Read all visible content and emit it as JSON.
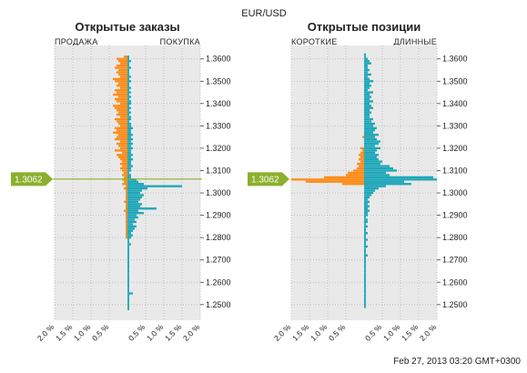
{
  "header": {
    "symbol": "EUR/USD"
  },
  "footer": {
    "timestamp": "Feb 27, 2013 03:20 GMT+0300"
  },
  "current_price": "1.3062",
  "colors": {
    "left_side": "#ff8c1a",
    "right_side": "#1ea7b9",
    "price_line": "#8bb02d",
    "plot_bg": "#e9e9e9"
  },
  "chart_data": [
    {
      "type": "bar",
      "orientation": "horizontal-diverging",
      "title": "Открытые заказы",
      "left_label": "ПРОДАЖА",
      "right_label": "ПОКУПКА",
      "y_ticks": [
        "1.3600",
        "1.3500",
        "1.3400",
        "1.3300",
        "1.3200",
        "1.3100",
        "1.3000",
        "1.2900",
        "1.2800",
        "1.2700",
        "1.2600",
        "1.2500"
      ],
      "x_ticks": [
        "2.0 %",
        "1.5 %",
        "1.0 %",
        "0.5 %",
        "0.5 %",
        "1.0 %",
        "1.5 %",
        "2.0 %"
      ],
      "xlim": [
        -2.0,
        2.0
      ],
      "ylim": [
        1.243,
        1.366
      ],
      "price_step": 0.001,
      "series": [
        {
          "name": "ПРОДАЖА",
          "prices": [
            1.361,
            1.36,
            1.359,
            1.358,
            1.357,
            1.356,
            1.355,
            1.354,
            1.353,
            1.352,
            1.351,
            1.35,
            1.349,
            1.348,
            1.347,
            1.346,
            1.345,
            1.344,
            1.343,
            1.342,
            1.341,
            1.34,
            1.339,
            1.338,
            1.337,
            1.336,
            1.335,
            1.334,
            1.333,
            1.332,
            1.331,
            1.33,
            1.329,
            1.328,
            1.327,
            1.326,
            1.325,
            1.324,
            1.323,
            1.322,
            1.321,
            1.32,
            1.319,
            1.318,
            1.317,
            1.316,
            1.315,
            1.314,
            1.313,
            1.312,
            1.311,
            1.31,
            1.309,
            1.308,
            1.307,
            1.306,
            1.305,
            1.304,
            1.303,
            1.302,
            1.301,
            1.3,
            1.299,
            1.298,
            1.297,
            1.296,
            1.295,
            1.294,
            1.293,
            1.292,
            1.291,
            1.29,
            1.289,
            1.288,
            1.287,
            1.286,
            1.285,
            1.284,
            1.283,
            1.282,
            1.281,
            1.28
          ],
          "values": [
            0.1,
            0.3,
            0.25,
            0.2,
            0.3,
            0.35,
            0.25,
            0.3,
            0.25,
            0.2,
            0.4,
            0.35,
            0.25,
            0.3,
            0.2,
            0.35,
            0.3,
            0.4,
            0.25,
            0.35,
            0.3,
            0.2,
            0.4,
            0.35,
            0.3,
            0.25,
            0.3,
            0.2,
            0.35,
            0.3,
            0.25,
            0.2,
            0.35,
            0.3,
            0.4,
            0.25,
            0.3,
            0.35,
            0.2,
            0.3,
            0.25,
            0.2,
            0.35,
            0.15,
            0.3,
            0.25,
            0.2,
            0.15,
            0.2,
            0.15,
            0.2,
            0.15,
            0.1,
            0.15,
            0.1,
            0.15,
            0.1,
            0.15,
            0.05,
            0.1,
            0.05,
            0.05,
            0.05,
            0.05,
            0.05,
            0.1,
            0.05,
            0.05,
            0.05,
            0.1,
            0.05,
            0.05,
            0.05,
            0.05,
            0.05,
            0.05,
            0.05,
            0.05,
            0.05,
            0.05,
            0.05,
            0.05
          ]
        },
        {
          "name": "ПОКУПКА",
          "prices": [
            1.361,
            1.36,
            1.359,
            1.358,
            1.357,
            1.356,
            1.355,
            1.354,
            1.353,
            1.352,
            1.351,
            1.35,
            1.349,
            1.348,
            1.347,
            1.346,
            1.345,
            1.344,
            1.343,
            1.342,
            1.341,
            1.34,
            1.339,
            1.338,
            1.337,
            1.336,
            1.335,
            1.334,
            1.333,
            1.332,
            1.331,
            1.33,
            1.329,
            1.328,
            1.327,
            1.326,
            1.325,
            1.324,
            1.323,
            1.322,
            1.321,
            1.32,
            1.319,
            1.318,
            1.317,
            1.316,
            1.315,
            1.314,
            1.313,
            1.312,
            1.311,
            1.31,
            1.309,
            1.308,
            1.307,
            1.306,
            1.305,
            1.304,
            1.303,
            1.302,
            1.301,
            1.3,
            1.299,
            1.298,
            1.297,
            1.296,
            1.295,
            1.294,
            1.293,
            1.292,
            1.291,
            1.29,
            1.289,
            1.288,
            1.287,
            1.286,
            1.285,
            1.284,
            1.283,
            1.282,
            1.281,
            1.28,
            1.279,
            1.278,
            1.277,
            1.276,
            1.275,
            1.274,
            1.273,
            1.272,
            1.271,
            1.27,
            1.269,
            1.268,
            1.267,
            1.266,
            1.265,
            1.264,
            1.263,
            1.262,
            1.261,
            1.26,
            1.259,
            1.258,
            1.257,
            1.256,
            1.255,
            1.254,
            1.253,
            1.252,
            1.251,
            1.25,
            1.249,
            1.248
          ],
          "values": [
            0.05,
            0.05,
            0.1,
            0.05,
            0.05,
            0.1,
            0.05,
            0.05,
            0.05,
            0.1,
            0.05,
            0.1,
            0.05,
            0.05,
            0.1,
            0.05,
            0.1,
            0.05,
            0.1,
            0.05,
            0.1,
            0.1,
            0.05,
            0.1,
            0.05,
            0.1,
            0.05,
            0.1,
            0.1,
            0.05,
            0.1,
            0.1,
            0.15,
            0.1,
            0.1,
            0.15,
            0.1,
            0.15,
            0.1,
            0.15,
            0.1,
            0.15,
            0.1,
            0.1,
            0.15,
            0.1,
            0.15,
            0.1,
            0.1,
            0.15,
            0.1,
            0.1,
            0.05,
            0.1,
            0.1,
            0.25,
            0.3,
            0.45,
            1.5,
            0.55,
            0.4,
            0.35,
            0.45,
            0.4,
            0.35,
            0.3,
            0.4,
            0.35,
            0.8,
            0.3,
            0.45,
            0.25,
            0.3,
            0.2,
            0.25,
            0.15,
            0.25,
            0.2,
            0.15,
            0.1,
            0.15,
            0.1,
            0.05,
            0.05,
            0.1,
            0.05,
            0.05,
            0.05,
            0.05,
            0.05,
            0.05,
            0.05,
            0.05,
            0.05,
            0.05,
            0.05,
            0.05,
            0.05,
            0.05,
            0.05,
            0.05,
            0.05,
            0.05,
            0.05,
            0.05,
            0.05,
            0.15,
            0.05,
            0.05,
            0.05,
            0.05,
            0.05,
            0.05,
            0.05
          ]
        }
      ]
    },
    {
      "type": "bar",
      "orientation": "horizontal-diverging",
      "title": "Открытые позиции",
      "left_label": "КОРОТКИЕ",
      "right_label": "ДЛИННЫЕ",
      "y_ticks": [
        "1.3600",
        "1.3500",
        "1.3400",
        "1.3300",
        "1.3200",
        "1.3100",
        "1.3000",
        "1.2900",
        "1.2800",
        "1.2700",
        "1.2600",
        "1.2500"
      ],
      "x_ticks": [
        "2.0 %",
        "1.5 %",
        "1.0 %",
        "0.5 %",
        "0.5 %",
        "1.0 %",
        "1.5 %",
        "2.0 %"
      ],
      "xlim": [
        -2.0,
        2.0
      ],
      "ylim": [
        1.243,
        1.366
      ],
      "price_step": 0.001,
      "series": [
        {
          "name": "КОРОТКИЕ",
          "prices": [
            1.325,
            1.32,
            1.319,
            1.318,
            1.317,
            1.316,
            1.315,
            1.314,
            1.313,
            1.312,
            1.311,
            1.31,
            1.309,
            1.308,
            1.307,
            1.306,
            1.305,
            1.304
          ],
          "values": [
            0.05,
            0.1,
            0.05,
            0.1,
            0.15,
            0.1,
            0.15,
            0.1,
            0.2,
            0.15,
            0.2,
            0.3,
            0.45,
            0.5,
            1.1,
            2.0,
            1.6,
            0.6
          ]
        },
        {
          "name": "ДЛИННЫЕ",
          "prices": [
            1.362,
            1.361,
            1.36,
            1.359,
            1.358,
            1.357,
            1.356,
            1.355,
            1.354,
            1.353,
            1.352,
            1.351,
            1.35,
            1.349,
            1.348,
            1.347,
            1.346,
            1.345,
            1.344,
            1.343,
            1.342,
            1.341,
            1.34,
            1.339,
            1.338,
            1.337,
            1.336,
            1.335,
            1.334,
            1.333,
            1.332,
            1.331,
            1.33,
            1.329,
            1.328,
            1.327,
            1.326,
            1.325,
            1.324,
            1.323,
            1.322,
            1.321,
            1.32,
            1.319,
            1.318,
            1.317,
            1.316,
            1.315,
            1.314,
            1.313,
            1.312,
            1.311,
            1.31,
            1.309,
            1.308,
            1.307,
            1.306,
            1.305,
            1.304,
            1.303,
            1.302,
            1.301,
            1.3,
            1.299,
            1.298,
            1.297,
            1.296,
            1.295,
            1.294,
            1.293,
            1.292,
            1.291,
            1.29,
            1.289,
            1.288,
            1.287,
            1.286,
            1.285,
            1.284,
            1.283,
            1.282,
            1.281,
            1.28,
            1.279,
            1.278,
            1.277,
            1.276,
            1.275,
            1.274,
            1.273,
            1.272,
            1.271,
            1.27,
            1.269,
            1.268,
            1.267,
            1.266,
            1.265,
            1.264,
            1.263,
            1.262,
            1.261,
            1.26,
            1.259,
            1.258,
            1.257,
            1.256,
            1.255,
            1.254,
            1.253,
            1.252,
            1.251,
            1.25,
            1.249
          ],
          "values": [
            0.05,
            0.05,
            0.1,
            0.15,
            0.2,
            0.1,
            0.1,
            0.15,
            0.1,
            0.2,
            0.1,
            0.15,
            0.25,
            0.15,
            0.2,
            0.15,
            0.1,
            0.25,
            0.15,
            0.2,
            0.15,
            0.25,
            0.15,
            0.2,
            0.25,
            0.15,
            0.2,
            0.15,
            0.15,
            0.25,
            0.2,
            0.3,
            0.25,
            0.35,
            0.3,
            0.25,
            0.4,
            0.3,
            0.35,
            0.45,
            0.4,
            0.3,
            0.45,
            0.35,
            0.3,
            0.4,
            0.35,
            0.4,
            0.5,
            0.45,
            0.7,
            0.8,
            0.9,
            0.6,
            0.7,
            1.9,
            2.0,
            1.1,
            1.3,
            0.6,
            0.4,
            0.3,
            0.25,
            0.2,
            0.15,
            0.1,
            0.15,
            0.1,
            0.15,
            0.1,
            0.15,
            0.1,
            0.1,
            0.05,
            0.1,
            0.1,
            0.05,
            0.1,
            0.05,
            0.05,
            0.1,
            0.05,
            0.05,
            0.1,
            0.05,
            0.05,
            0.1,
            0.05,
            0.05,
            0.05,
            0.1,
            0.05,
            0.05,
            0.05,
            0.05,
            0.05,
            0.05,
            0.05,
            0.05,
            0.05,
            0.05,
            0.05,
            0.05,
            0.05,
            0.05,
            0.05,
            0.05,
            0.05,
            0.05,
            0.05,
            0.05,
            0.05,
            0.05,
            0.05
          ]
        }
      ]
    }
  ]
}
